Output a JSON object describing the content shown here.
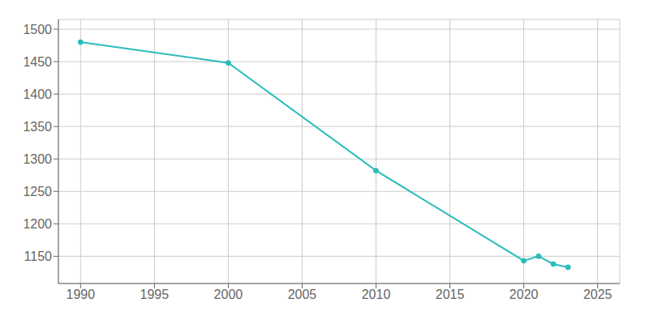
{
  "chart_data": {
    "type": "line",
    "x": [
      1990,
      2000,
      2010,
      2020,
      2021,
      2022,
      2023
    ],
    "values": [
      1480,
      1448,
      1282,
      1143,
      1150,
      1138,
      1133
    ],
    "color": "#2bbcbc",
    "marker": "o",
    "xlim": [
      1988.5,
      2026.5
    ],
    "ylim": [
      1108,
      1515
    ],
    "xticks": [
      1990,
      1995,
      2000,
      2005,
      2010,
      2015,
      2020,
      2025
    ],
    "yticks": [
      1150,
      1200,
      1250,
      1300,
      1350,
      1400,
      1450,
      1500
    ],
    "grid": true
  }
}
